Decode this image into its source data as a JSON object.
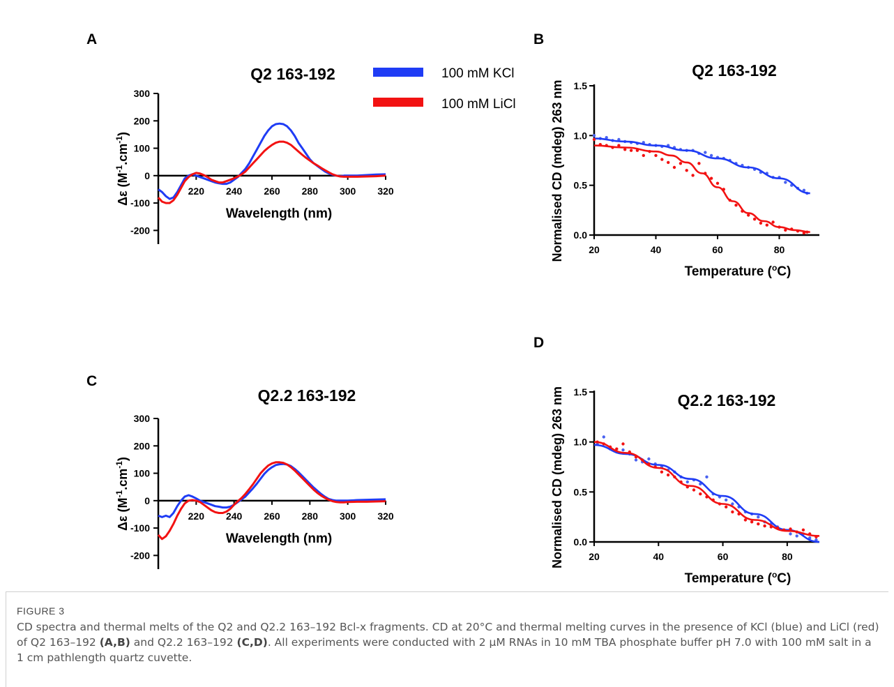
{
  "legend": [
    {
      "label": "100 mM KCl",
      "color": "#1f3cf5"
    },
    {
      "label": "100 mM LiCl",
      "color": "#f21212"
    }
  ],
  "colors": {
    "kcl": "#1f3cf5",
    "kcl_dots": "#4a63f0",
    "licl": "#f21212",
    "axis": "#000000"
  },
  "caption": {
    "label": "FIGURE 3",
    "text_1": "CD spectra and thermal melts of the Q2 and Q2.2 163–192 Bcl-x fragments. CD at 20°C and thermal melting curves in the presence of KCl (blue) and LiCl (red) of Q2 163–192 ",
    "ref_1": "(A,B)",
    "text_2": " and Q2.2 163–192 ",
    "ref_2": "(C,D)",
    "text_3": ". All experiments were conducted with 2 μM RNAs in 10 mM TBA phosphate buffer pH 7.0 with 100 mM salt in a 1 cm pathlength quartz cuvette."
  },
  "chart_data": [
    {
      "panel": "A",
      "type": "line",
      "title": "Q2 163-192",
      "xlabel": "Wavelength (nm)",
      "ylabel": "Δε (M-1.cm-1)",
      "xlim": [
        200,
        320
      ],
      "ylim": [
        -250,
        300
      ],
      "xticks": [
        220,
        240,
        260,
        280,
        300,
        320
      ],
      "yticks": [
        -200,
        -100,
        0,
        100,
        200,
        300
      ],
      "series": [
        {
          "name": "100 mM KCl",
          "x": [
            200,
            202,
            204,
            206,
            208,
            210,
            212,
            214,
            216,
            218,
            220,
            222,
            224,
            226,
            228,
            230,
            232,
            234,
            236,
            238,
            240,
            242,
            244,
            246,
            248,
            250,
            252,
            254,
            256,
            258,
            260,
            262,
            264,
            266,
            268,
            270,
            272,
            274,
            276,
            278,
            280,
            282,
            284,
            286,
            288,
            290,
            292,
            294,
            296,
            298,
            300,
            305,
            310,
            315,
            320
          ],
          "y": [
            -50,
            -60,
            -75,
            -85,
            -80,
            -60,
            -35,
            -10,
            0,
            5,
            0,
            -5,
            -10,
            -15,
            -20,
            -25,
            -28,
            -30,
            -30,
            -25,
            -15,
            -5,
            10,
            25,
            45,
            70,
            95,
            120,
            145,
            165,
            180,
            188,
            190,
            188,
            180,
            165,
            145,
            120,
            100,
            80,
            60,
            45,
            35,
            25,
            15,
            8,
            3,
            0,
            -2,
            0,
            0,
            0,
            2,
            4,
            5
          ]
        },
        {
          "name": "100 mM LiCl",
          "x": [
            200,
            202,
            204,
            206,
            208,
            210,
            212,
            214,
            216,
            218,
            220,
            222,
            224,
            226,
            228,
            230,
            232,
            234,
            236,
            238,
            240,
            242,
            244,
            246,
            248,
            250,
            252,
            254,
            256,
            258,
            260,
            262,
            264,
            266,
            268,
            270,
            272,
            274,
            276,
            278,
            280,
            282,
            284,
            286,
            288,
            290,
            292,
            294,
            296,
            298,
            300,
            305,
            310,
            315,
            320
          ],
          "y": [
            -80,
            -95,
            -100,
            -100,
            -90,
            -70,
            -45,
            -20,
            -5,
            5,
            10,
            8,
            2,
            -5,
            -15,
            -20,
            -25,
            -25,
            -20,
            -15,
            -10,
            -3,
            5,
            15,
            30,
            45,
            60,
            75,
            90,
            102,
            112,
            120,
            124,
            124,
            120,
            112,
            100,
            88,
            76,
            65,
            55,
            45,
            37,
            28,
            20,
            12,
            5,
            0,
            -3,
            -4,
            -4,
            -4,
            -3,
            -2,
            0
          ]
        }
      ]
    },
    {
      "panel": "B",
      "type": "scatter",
      "title": "Q2 163-192",
      "xlabel": "Temperature (oC)",
      "ylabel": "Normalised CD (mdeg) 263 nm",
      "xlim": [
        20,
        93
      ],
      "ylim": [
        0,
        1.5
      ],
      "xticks": [
        20,
        40,
        60,
        80
      ],
      "yticks": [
        0.0,
        0.5,
        1.0,
        1.5
      ],
      "series": [
        {
          "name": "100 mM KCl",
          "x": [
            20,
            22,
            24,
            26,
            28,
            30,
            32,
            34,
            36,
            38,
            40,
            42,
            44,
            46,
            48,
            50,
            52,
            54,
            56,
            58,
            60,
            62,
            64,
            66,
            68,
            70,
            72,
            74,
            76,
            78,
            80,
            82,
            84,
            86,
            88,
            89
          ],
          "y": [
            1.0,
            0.97,
            0.98,
            0.95,
            0.96,
            0.94,
            0.93,
            0.92,
            0.93,
            0.91,
            0.9,
            0.89,
            0.9,
            0.88,
            0.86,
            0.85,
            0.85,
            0.82,
            0.83,
            0.8,
            0.78,
            0.77,
            0.75,
            0.72,
            0.7,
            0.68,
            0.66,
            0.63,
            0.62,
            0.58,
            0.58,
            0.53,
            0.5,
            0.47,
            0.45,
            0.42
          ],
          "fit_x": [
            20,
            30,
            40,
            50,
            60,
            70,
            80,
            90
          ],
          "fit_y": [
            0.97,
            0.94,
            0.9,
            0.85,
            0.77,
            0.68,
            0.57,
            0.42
          ]
        },
        {
          "name": "100 mM LiCl",
          "x": [
            20,
            22,
            24,
            26,
            28,
            30,
            32,
            34,
            36,
            38,
            40,
            42,
            44,
            46,
            48,
            50,
            52,
            54,
            56,
            58,
            60,
            62,
            64,
            66,
            68,
            70,
            72,
            74,
            76,
            78,
            80,
            82,
            84,
            86,
            88,
            89
          ],
          "y": [
            0.96,
            0.91,
            0.9,
            0.88,
            0.9,
            0.86,
            0.85,
            0.85,
            0.8,
            0.84,
            0.8,
            0.76,
            0.73,
            0.68,
            0.72,
            0.65,
            0.6,
            0.72,
            0.62,
            0.57,
            0.52,
            0.46,
            0.35,
            0.3,
            0.24,
            0.2,
            0.16,
            0.12,
            0.1,
            0.13,
            0.08,
            0.05,
            0.06,
            0.04,
            0.02,
            0.03
          ],
          "fit_x": [
            20,
            30,
            40,
            45,
            50,
            55,
            60,
            65,
            70,
            75,
            80,
            85,
            90
          ],
          "fit_y": [
            0.9,
            0.88,
            0.84,
            0.8,
            0.73,
            0.62,
            0.48,
            0.34,
            0.22,
            0.14,
            0.08,
            0.05,
            0.03
          ]
        }
      ]
    },
    {
      "panel": "C",
      "type": "line",
      "title": "Q2.2 163-192",
      "xlabel": "Wavelength (nm)",
      "ylabel": "Δε (M-1.cm-1)",
      "xlim": [
        200,
        320
      ],
      "ylim": [
        -250,
        300
      ],
      "xticks": [
        220,
        240,
        260,
        280,
        300,
        320
      ],
      "yticks": [
        -200,
        -100,
        0,
        100,
        200,
        300
      ],
      "series": [
        {
          "name": "100 mM KCl",
          "x": [
            200,
            202,
            204,
            206,
            208,
            210,
            212,
            214,
            216,
            218,
            220,
            222,
            224,
            226,
            228,
            230,
            232,
            234,
            236,
            238,
            240,
            242,
            244,
            246,
            248,
            250,
            252,
            254,
            256,
            258,
            260,
            262,
            264,
            266,
            268,
            270,
            272,
            274,
            276,
            278,
            280,
            282,
            284,
            286,
            288,
            290,
            292,
            294,
            296,
            298,
            300,
            305,
            310,
            315,
            320
          ],
          "y": [
            -55,
            -60,
            -55,
            -60,
            -45,
            -20,
            0,
            15,
            20,
            15,
            8,
            0,
            -5,
            -10,
            -15,
            -20,
            -22,
            -25,
            -25,
            -22,
            -15,
            -5,
            5,
            15,
            30,
            45,
            62,
            80,
            98,
            112,
            122,
            130,
            133,
            134,
            132,
            126,
            116,
            104,
            90,
            76,
            62,
            48,
            36,
            24,
            14,
            6,
            2,
            0,
            0,
            0,
            0,
            2,
            3,
            4,
            5
          ]
        },
        {
          "name": "100 mM LiCl",
          "x": [
            200,
            202,
            204,
            206,
            208,
            210,
            212,
            214,
            216,
            218,
            220,
            222,
            224,
            226,
            228,
            230,
            232,
            234,
            236,
            238,
            240,
            242,
            244,
            246,
            248,
            250,
            252,
            254,
            256,
            258,
            260,
            262,
            264,
            266,
            268,
            270,
            272,
            274,
            276,
            278,
            280,
            282,
            284,
            286,
            288,
            290,
            292,
            294,
            296,
            298,
            300,
            305,
            310,
            315,
            320
          ],
          "y": [
            -125,
            -140,
            -130,
            -110,
            -85,
            -55,
            -30,
            -10,
            0,
            2,
            0,
            -5,
            -15,
            -25,
            -35,
            -42,
            -45,
            -45,
            -40,
            -30,
            -15,
            -2,
            10,
            25,
            42,
            60,
            80,
            100,
            115,
            128,
            136,
            140,
            140,
            138,
            132,
            122,
            110,
            96,
            82,
            68,
            54,
            40,
            28,
            18,
            10,
            3,
            -2,
            -5,
            -6,
            -6,
            -5,
            -4,
            -4,
            -3,
            -2
          ]
        }
      ]
    },
    {
      "panel": "D",
      "type": "scatter",
      "title": "Q2.2 163-192",
      "xlabel": "Temperature (oC)",
      "ylabel": "Normalised CD (mdeg) 263 nm",
      "xlim": [
        20,
        90
      ],
      "ylim": [
        0,
        1.5
      ],
      "xticks": [
        20,
        40,
        60,
        80
      ],
      "yticks": [
        0.0,
        0.5,
        1.0,
        1.5
      ],
      "series": [
        {
          "name": "100 mM KCl",
          "x": [
            21,
            23,
            25,
            27,
            29,
            31,
            33,
            35,
            37,
            39,
            41,
            43,
            45,
            47,
            49,
            51,
            53,
            55,
            57,
            59,
            61,
            63,
            65,
            67,
            69,
            71,
            73,
            75,
            77,
            79,
            81,
            83,
            85,
            87,
            89
          ],
          "y": [
            0.98,
            1.05,
            0.93,
            0.9,
            0.92,
            0.88,
            0.82,
            0.8,
            0.83,
            0.78,
            0.75,
            0.72,
            0.7,
            0.65,
            0.6,
            0.62,
            0.58,
            0.65,
            0.48,
            0.45,
            0.42,
            0.38,
            0.35,
            0.3,
            0.28,
            0.25,
            0.2,
            0.18,
            0.15,
            0.12,
            0.08,
            0.06,
            0.08,
            0.04,
            0.02
          ],
          "fit_x": [
            20,
            30,
            40,
            50,
            60,
            70,
            80,
            90
          ],
          "fit_y": [
            0.97,
            0.88,
            0.77,
            0.63,
            0.46,
            0.28,
            0.12,
            0.0
          ]
        },
        {
          "name": "100 mM LiCl",
          "x": [
            21,
            23,
            25,
            27,
            29,
            31,
            33,
            35,
            37,
            39,
            41,
            43,
            45,
            47,
            49,
            51,
            53,
            55,
            57,
            59,
            61,
            63,
            65,
            67,
            69,
            71,
            73,
            75,
            77,
            79,
            81,
            83,
            85,
            87,
            89
          ],
          "y": [
            1.0,
            0.98,
            0.95,
            0.93,
            0.98,
            0.9,
            0.85,
            0.82,
            0.78,
            0.75,
            0.7,
            0.67,
            0.65,
            0.6,
            0.55,
            0.52,
            0.48,
            0.45,
            0.42,
            0.38,
            0.35,
            0.3,
            0.28,
            0.22,
            0.2,
            0.18,
            0.16,
            0.15,
            0.14,
            0.12,
            0.13,
            0.1,
            0.12,
            0.08,
            0.05
          ],
          "fit_x": [
            20,
            30,
            40,
            50,
            60,
            70,
            80,
            90
          ],
          "fit_y": [
            1.0,
            0.89,
            0.74,
            0.56,
            0.38,
            0.22,
            0.11,
            0.06
          ]
        }
      ]
    }
  ]
}
